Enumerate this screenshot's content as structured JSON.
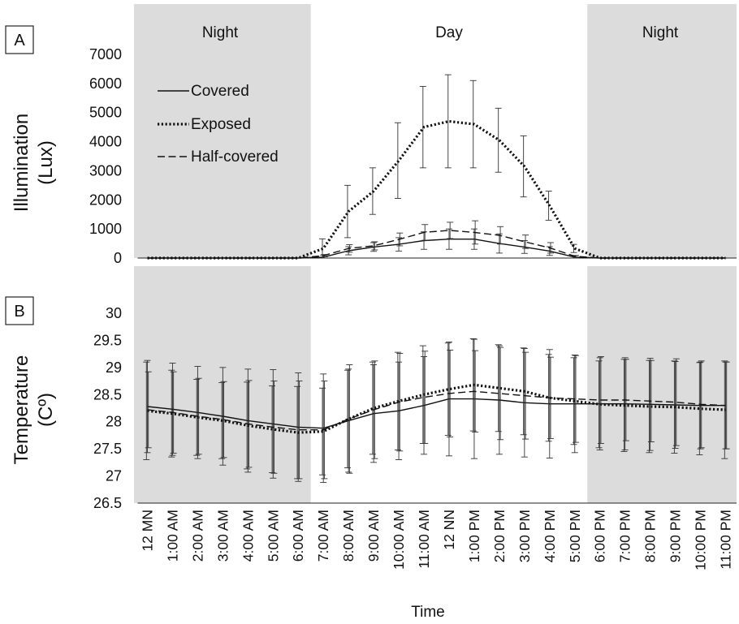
{
  "chart_data": [
    {
      "panel": "A",
      "type": "line",
      "ylabel": [
        "Illumination",
        "(Lux)"
      ],
      "ylim": [
        0,
        7000
      ],
      "yticks": [
        0,
        1000,
        2000,
        3000,
        4000,
        5000,
        6000,
        7000
      ],
      "bands": [
        {
          "label": "Night",
          "shaded": true
        },
        {
          "label": "Day",
          "shaded": false
        },
        {
          "label": "Night",
          "shaded": true
        }
      ],
      "legend": {
        "placement": "top-left",
        "entries": [
          "Covered",
          "Exposed",
          "Half-covered"
        ]
      },
      "series": [
        {
          "name": "Covered",
          "style": "solid",
          "values": [
            0,
            0,
            0,
            0,
            0,
            0,
            0,
            30,
            250,
            380,
            470,
            600,
            650,
            650,
            500,
            380,
            240,
            30,
            0,
            0,
            0,
            0,
            0,
            0
          ],
          "errors": [
            0,
            0,
            0,
            0,
            0,
            0,
            0,
            70,
            140,
            150,
            230,
            300,
            350,
            350,
            330,
            220,
            150,
            50,
            0,
            0,
            0,
            0,
            0,
            0
          ]
        },
        {
          "name": "Exposed",
          "style": "dotted",
          "values": [
            0,
            0,
            0,
            0,
            0,
            0,
            0,
            330,
            1600,
            2300,
            3350,
            4500,
            4700,
            4600,
            4050,
            3150,
            1800,
            330,
            0,
            0,
            0,
            0,
            0,
            0
          ],
          "errors": [
            0,
            0,
            0,
            0,
            0,
            0,
            0,
            330,
            900,
            800,
            1300,
            1400,
            1600,
            1500,
            1100,
            1050,
            500,
            140,
            0,
            0,
            0,
            0,
            0,
            0
          ]
        },
        {
          "name": "Half-covered",
          "style": "dashed",
          "values": [
            0,
            0,
            0,
            0,
            0,
            0,
            0,
            80,
            330,
            420,
            640,
            880,
            950,
            880,
            780,
            560,
            350,
            60,
            0,
            0,
            0,
            0,
            0,
            0
          ],
          "errors": [
            0,
            0,
            0,
            0,
            0,
            0,
            0,
            40,
            130,
            140,
            220,
            270,
            280,
            400,
            300,
            230,
            180,
            30,
            0,
            0,
            0,
            0,
            0,
            0
          ]
        }
      ]
    },
    {
      "panel": "B",
      "type": "line",
      "xlabel": "Time",
      "ylabel": [
        "Temperature",
        "(Cº)"
      ],
      "ylim": [
        26.5,
        30
      ],
      "yticks": [
        26.5,
        27,
        27.5,
        28,
        28.5,
        29,
        29.5,
        30
      ],
      "x": [
        "12 MN",
        "1:00 AM",
        "2:00 AM",
        "3:00 AM",
        "4:00 AM",
        "5:00 AM",
        "6:00 AM",
        "7:00 AM",
        "8:00 AM",
        "9:00 AM",
        "10:00 AM",
        "11:00 AM",
        "12 NN",
        "1:00 PM",
        "2:00 PM",
        "3:00 PM",
        "4:00 PM",
        "5:00 PM",
        "6:00 PM",
        "7:00 PM",
        "8:00 PM",
        "9:00 PM",
        "10:00 PM",
        "11:00 PM"
      ],
      "series": [
        {
          "name": "Covered",
          "style": "solid",
          "values": [
            28.28,
            28.23,
            28.17,
            28.1,
            28.02,
            27.96,
            27.9,
            27.88,
            28.02,
            28.15,
            28.2,
            28.3,
            28.42,
            28.42,
            28.4,
            28.35,
            28.33,
            28.33,
            28.33,
            28.33,
            28.32,
            28.31,
            28.3,
            28.3
          ],
          "errors": [
            0.85,
            0.85,
            0.85,
            0.9,
            0.95,
            1.0,
            1.0,
            1.0,
            0.95,
            0.9,
            0.9,
            0.9,
            1.05,
            1.1,
            1.0,
            1.0,
            1.0,
            0.9,
            0.85,
            0.85,
            0.85,
            0.8,
            0.8,
            0.8
          ]
        },
        {
          "name": "Exposed",
          "style": "dotted",
          "values": [
            28.2,
            28.15,
            28.08,
            28.02,
            27.93,
            27.86,
            27.8,
            27.82,
            28.05,
            28.25,
            28.38,
            28.5,
            28.6,
            28.68,
            28.62,
            28.56,
            28.44,
            28.38,
            28.32,
            28.3,
            28.28,
            28.27,
            28.24,
            28.22
          ],
          "errors": [
            0.9,
            0.8,
            0.7,
            0.7,
            0.8,
            0.8,
            0.85,
            0.8,
            0.9,
            0.85,
            0.9,
            0.9,
            0.85,
            0.85,
            0.8,
            0.8,
            0.8,
            0.8,
            0.8,
            0.85,
            0.85,
            0.85,
            0.85,
            0.9
          ]
        },
        {
          "name": "Half-covered",
          "style": "dashed",
          "values": [
            28.22,
            28.17,
            28.1,
            28.04,
            27.96,
            27.9,
            27.85,
            27.85,
            28.05,
            28.22,
            28.36,
            28.45,
            28.52,
            28.56,
            28.52,
            28.48,
            28.44,
            28.42,
            28.4,
            28.4,
            28.38,
            28.36,
            28.32,
            28.3
          ],
          "errors": [
            0.7,
            0.75,
            0.7,
            0.7,
            0.8,
            0.85,
            0.9,
            0.9,
            1.0,
            0.9,
            0.9,
            0.85,
            0.8,
            0.75,
            0.85,
            0.8,
            0.75,
            0.8,
            0.8,
            0.75,
            0.75,
            0.8,
            0.8,
            0.8
          ]
        }
      ]
    }
  ]
}
